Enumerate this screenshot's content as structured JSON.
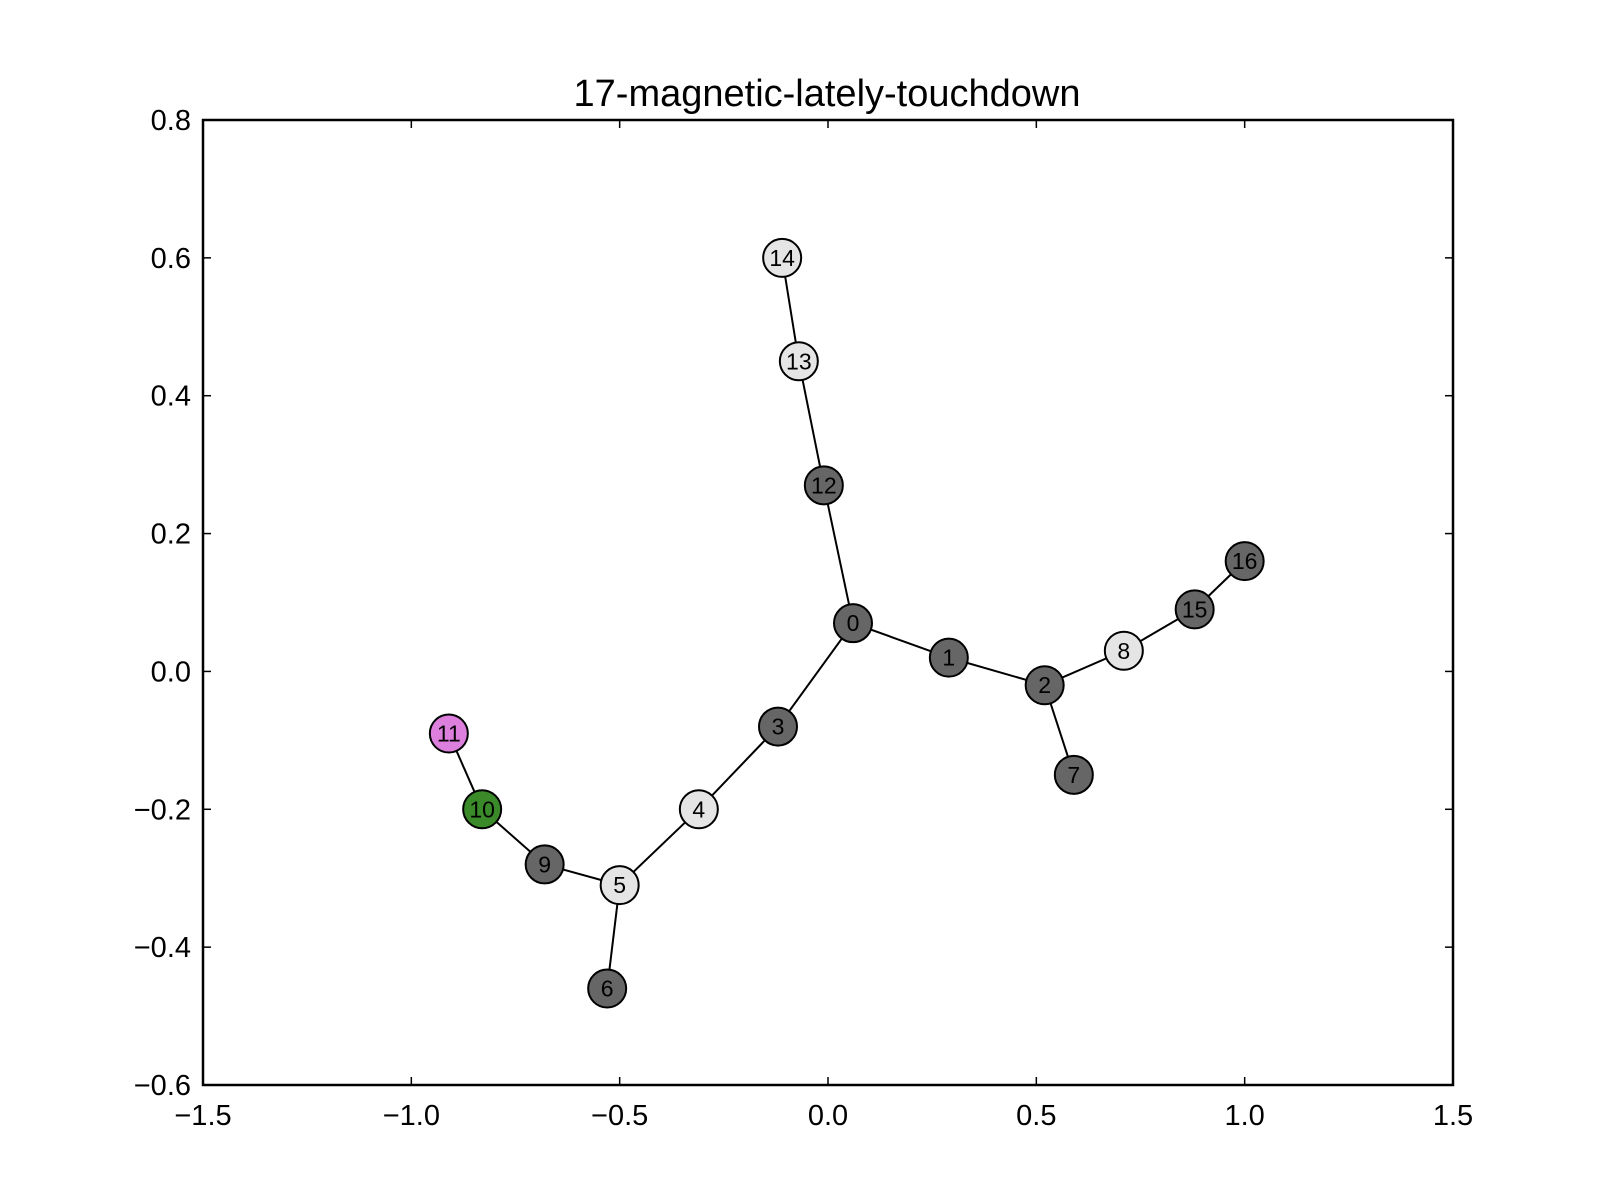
{
  "chart_data": {
    "type": "network",
    "title": "17-magnetic-lately-touchdown",
    "xlim": [
      -1.5,
      1.5
    ],
    "ylim": [
      -0.6,
      0.8
    ],
    "xticks": [
      {
        "value": -1.5,
        "label": "−1.5"
      },
      {
        "value": -1.0,
        "label": "−1.0"
      },
      {
        "value": -0.5,
        "label": "−0.5"
      },
      {
        "value": 0.0,
        "label": "0.0"
      },
      {
        "value": 0.5,
        "label": "0.5"
      },
      {
        "value": 1.0,
        "label": "1.0"
      },
      {
        "value": 1.5,
        "label": "1.5"
      }
    ],
    "yticks": [
      {
        "value": -0.6,
        "label": "−0.6"
      },
      {
        "value": -0.4,
        "label": "−0.4"
      },
      {
        "value": -0.2,
        "label": "−0.2"
      },
      {
        "value": 0.0,
        "label": "0.0"
      },
      {
        "value": 0.2,
        "label": "0.2"
      },
      {
        "value": 0.4,
        "label": "0.4"
      },
      {
        "value": 0.6,
        "label": "0.6"
      },
      {
        "value": 0.8,
        "label": "0.8"
      }
    ],
    "grid": false,
    "nodes": [
      {
        "id": "0",
        "x": 0.06,
        "y": 0.07,
        "color": "#666666"
      },
      {
        "id": "1",
        "x": 0.29,
        "y": 0.02,
        "color": "#666666"
      },
      {
        "id": "2",
        "x": 0.52,
        "y": -0.02,
        "color": "#666666"
      },
      {
        "id": "3",
        "x": -0.12,
        "y": -0.08,
        "color": "#666666"
      },
      {
        "id": "4",
        "x": -0.31,
        "y": -0.2,
        "color": "#e5e5e5"
      },
      {
        "id": "5",
        "x": -0.5,
        "y": -0.31,
        "color": "#e5e5e5"
      },
      {
        "id": "6",
        "x": -0.53,
        "y": -0.46,
        "color": "#666666"
      },
      {
        "id": "7",
        "x": 0.59,
        "y": -0.15,
        "color": "#666666"
      },
      {
        "id": "8",
        "x": 0.71,
        "y": 0.03,
        "color": "#e5e5e5"
      },
      {
        "id": "9",
        "x": -0.68,
        "y": -0.28,
        "color": "#666666"
      },
      {
        "id": "10",
        "x": -0.83,
        "y": -0.2,
        "color": "#3a8a2a"
      },
      {
        "id": "11",
        "x": -0.91,
        "y": -0.09,
        "color": "#dd80dd"
      },
      {
        "id": "12",
        "x": -0.01,
        "y": 0.27,
        "color": "#666666"
      },
      {
        "id": "13",
        "x": -0.07,
        "y": 0.45,
        "color": "#e5e5e5"
      },
      {
        "id": "14",
        "x": -0.11,
        "y": 0.6,
        "color": "#e5e5e5"
      },
      {
        "id": "15",
        "x": 0.88,
        "y": 0.09,
        "color": "#666666"
      },
      {
        "id": "16",
        "x": 1.0,
        "y": 0.16,
        "color": "#666666"
      }
    ],
    "edges": [
      [
        "0",
        "1"
      ],
      [
        "1",
        "2"
      ],
      [
        "2",
        "7"
      ],
      [
        "2",
        "8"
      ],
      [
        "8",
        "15"
      ],
      [
        "15",
        "16"
      ],
      [
        "0",
        "12"
      ],
      [
        "12",
        "13"
      ],
      [
        "13",
        "14"
      ],
      [
        "0",
        "3"
      ],
      [
        "3",
        "4"
      ],
      [
        "4",
        "5"
      ],
      [
        "5",
        "6"
      ],
      [
        "5",
        "9"
      ],
      [
        "9",
        "10"
      ],
      [
        "10",
        "11"
      ]
    ]
  }
}
